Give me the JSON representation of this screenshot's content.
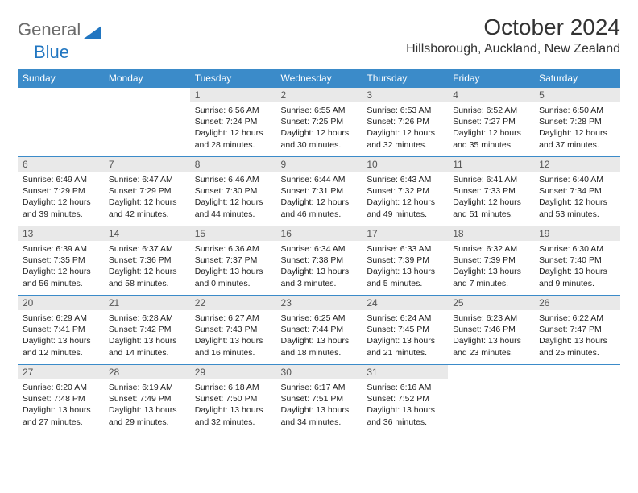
{
  "brand": {
    "part1": "General",
    "part2": "Blue"
  },
  "title": "October 2024",
  "location": "Hillsborough, Auckland, New Zealand",
  "colors": {
    "header_bg": "#3b8bc9",
    "header_text": "#ffffff",
    "daynum_bg": "#e9e9e9",
    "row_border": "#3b8bc9",
    "brand_gray": "#6b6b6b",
    "brand_blue": "#2176c1"
  },
  "day_labels": [
    "Sunday",
    "Monday",
    "Tuesday",
    "Wednesday",
    "Thursday",
    "Friday",
    "Saturday"
  ],
  "weeks": [
    [
      {
        "n": "",
        "sr": "",
        "ss": "",
        "dl": ""
      },
      {
        "n": "",
        "sr": "",
        "ss": "",
        "dl": ""
      },
      {
        "n": "1",
        "sr": "Sunrise: 6:56 AM",
        "ss": "Sunset: 7:24 PM",
        "dl": "Daylight: 12 hours and 28 minutes."
      },
      {
        "n": "2",
        "sr": "Sunrise: 6:55 AM",
        "ss": "Sunset: 7:25 PM",
        "dl": "Daylight: 12 hours and 30 minutes."
      },
      {
        "n": "3",
        "sr": "Sunrise: 6:53 AM",
        "ss": "Sunset: 7:26 PM",
        "dl": "Daylight: 12 hours and 32 minutes."
      },
      {
        "n": "4",
        "sr": "Sunrise: 6:52 AM",
        "ss": "Sunset: 7:27 PM",
        "dl": "Daylight: 12 hours and 35 minutes."
      },
      {
        "n": "5",
        "sr": "Sunrise: 6:50 AM",
        "ss": "Sunset: 7:28 PM",
        "dl": "Daylight: 12 hours and 37 minutes."
      }
    ],
    [
      {
        "n": "6",
        "sr": "Sunrise: 6:49 AM",
        "ss": "Sunset: 7:29 PM",
        "dl": "Daylight: 12 hours and 39 minutes."
      },
      {
        "n": "7",
        "sr": "Sunrise: 6:47 AM",
        "ss": "Sunset: 7:29 PM",
        "dl": "Daylight: 12 hours and 42 minutes."
      },
      {
        "n": "8",
        "sr": "Sunrise: 6:46 AM",
        "ss": "Sunset: 7:30 PM",
        "dl": "Daylight: 12 hours and 44 minutes."
      },
      {
        "n": "9",
        "sr": "Sunrise: 6:44 AM",
        "ss": "Sunset: 7:31 PM",
        "dl": "Daylight: 12 hours and 46 minutes."
      },
      {
        "n": "10",
        "sr": "Sunrise: 6:43 AM",
        "ss": "Sunset: 7:32 PM",
        "dl": "Daylight: 12 hours and 49 minutes."
      },
      {
        "n": "11",
        "sr": "Sunrise: 6:41 AM",
        "ss": "Sunset: 7:33 PM",
        "dl": "Daylight: 12 hours and 51 minutes."
      },
      {
        "n": "12",
        "sr": "Sunrise: 6:40 AM",
        "ss": "Sunset: 7:34 PM",
        "dl": "Daylight: 12 hours and 53 minutes."
      }
    ],
    [
      {
        "n": "13",
        "sr": "Sunrise: 6:39 AM",
        "ss": "Sunset: 7:35 PM",
        "dl": "Daylight: 12 hours and 56 minutes."
      },
      {
        "n": "14",
        "sr": "Sunrise: 6:37 AM",
        "ss": "Sunset: 7:36 PM",
        "dl": "Daylight: 12 hours and 58 minutes."
      },
      {
        "n": "15",
        "sr": "Sunrise: 6:36 AM",
        "ss": "Sunset: 7:37 PM",
        "dl": "Daylight: 13 hours and 0 minutes."
      },
      {
        "n": "16",
        "sr": "Sunrise: 6:34 AM",
        "ss": "Sunset: 7:38 PM",
        "dl": "Daylight: 13 hours and 3 minutes."
      },
      {
        "n": "17",
        "sr": "Sunrise: 6:33 AM",
        "ss": "Sunset: 7:39 PM",
        "dl": "Daylight: 13 hours and 5 minutes."
      },
      {
        "n": "18",
        "sr": "Sunrise: 6:32 AM",
        "ss": "Sunset: 7:39 PM",
        "dl": "Daylight: 13 hours and 7 minutes."
      },
      {
        "n": "19",
        "sr": "Sunrise: 6:30 AM",
        "ss": "Sunset: 7:40 PM",
        "dl": "Daylight: 13 hours and 9 minutes."
      }
    ],
    [
      {
        "n": "20",
        "sr": "Sunrise: 6:29 AM",
        "ss": "Sunset: 7:41 PM",
        "dl": "Daylight: 13 hours and 12 minutes."
      },
      {
        "n": "21",
        "sr": "Sunrise: 6:28 AM",
        "ss": "Sunset: 7:42 PM",
        "dl": "Daylight: 13 hours and 14 minutes."
      },
      {
        "n": "22",
        "sr": "Sunrise: 6:27 AM",
        "ss": "Sunset: 7:43 PM",
        "dl": "Daylight: 13 hours and 16 minutes."
      },
      {
        "n": "23",
        "sr": "Sunrise: 6:25 AM",
        "ss": "Sunset: 7:44 PM",
        "dl": "Daylight: 13 hours and 18 minutes."
      },
      {
        "n": "24",
        "sr": "Sunrise: 6:24 AM",
        "ss": "Sunset: 7:45 PM",
        "dl": "Daylight: 13 hours and 21 minutes."
      },
      {
        "n": "25",
        "sr": "Sunrise: 6:23 AM",
        "ss": "Sunset: 7:46 PM",
        "dl": "Daylight: 13 hours and 23 minutes."
      },
      {
        "n": "26",
        "sr": "Sunrise: 6:22 AM",
        "ss": "Sunset: 7:47 PM",
        "dl": "Daylight: 13 hours and 25 minutes."
      }
    ],
    [
      {
        "n": "27",
        "sr": "Sunrise: 6:20 AM",
        "ss": "Sunset: 7:48 PM",
        "dl": "Daylight: 13 hours and 27 minutes."
      },
      {
        "n": "28",
        "sr": "Sunrise: 6:19 AM",
        "ss": "Sunset: 7:49 PM",
        "dl": "Daylight: 13 hours and 29 minutes."
      },
      {
        "n": "29",
        "sr": "Sunrise: 6:18 AM",
        "ss": "Sunset: 7:50 PM",
        "dl": "Daylight: 13 hours and 32 minutes."
      },
      {
        "n": "30",
        "sr": "Sunrise: 6:17 AM",
        "ss": "Sunset: 7:51 PM",
        "dl": "Daylight: 13 hours and 34 minutes."
      },
      {
        "n": "31",
        "sr": "Sunrise: 6:16 AM",
        "ss": "Sunset: 7:52 PM",
        "dl": "Daylight: 13 hours and 36 minutes."
      },
      {
        "n": "",
        "sr": "",
        "ss": "",
        "dl": ""
      },
      {
        "n": "",
        "sr": "",
        "ss": "",
        "dl": ""
      }
    ]
  ]
}
